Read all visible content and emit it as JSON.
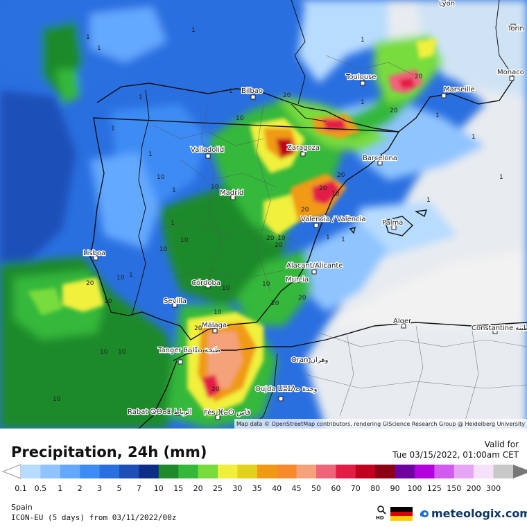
{
  "legend": {
    "title": "Precipitation, 24h (mm)",
    "valid_label": "Valid for",
    "valid_time": "Tue 03/15/2022, 01:00am CET",
    "region": "Spain",
    "model": "ICON-EU (5 days) from 03/11/2022/00z",
    "brand": "meteologix.com",
    "hd": "HD",
    "scale": [
      {
        "label": "0.1",
        "color": "#b8dcff"
      },
      {
        "label": "0.5",
        "color": "#8fc4ff"
      },
      {
        "label": "1",
        "color": "#64a9ff"
      },
      {
        "label": "2",
        "color": "#3d8cf5"
      },
      {
        "label": "3",
        "color": "#2a6fe0"
      },
      {
        "label": "5",
        "color": "#1c4fb8"
      },
      {
        "label": "7",
        "color": "#0d2e86"
      },
      {
        "label": "10",
        "color": "#1e8a2a"
      },
      {
        "label": "15",
        "color": "#34b83a"
      },
      {
        "label": "20",
        "color": "#78dc3c"
      },
      {
        "label": "25",
        "color": "#f0f03c"
      },
      {
        "label": "30",
        "color": "#e2d21e"
      },
      {
        "label": "35",
        "color": "#f09a14"
      },
      {
        "label": "40",
        "color": "#f78a2c"
      },
      {
        "label": "45",
        "color": "#f5a27a"
      },
      {
        "label": "50",
        "color": "#f0647a"
      },
      {
        "label": "60",
        "color": "#e31c46"
      },
      {
        "label": "70",
        "color": "#c0001e"
      },
      {
        "label": "80",
        "color": "#8c0014"
      },
      {
        "label": "90",
        "color": "#6e00a0"
      },
      {
        "label": "100",
        "color": "#b400dc"
      },
      {
        "label": "125",
        "color": "#d25af0"
      },
      {
        "label": "150",
        "color": "#e6a6f5"
      },
      {
        "label": "200",
        "color": "#f5e1fa"
      },
      {
        "label": "300",
        "color": "#c8c8c8"
      }
    ]
  },
  "map": {
    "attribution": "Map data © OpenStreetMap contributors, rendering GIScience Research Group @ Heidelberg University",
    "cities": [
      {
        "name": "Lyon"
      },
      {
        "name": "Torin"
      },
      {
        "name": "Toulouse"
      },
      {
        "name": "Monaco"
      },
      {
        "name": "Marseille"
      },
      {
        "name": "Bilbao"
      },
      {
        "name": "Valladolid"
      },
      {
        "name": "Zaragoza"
      },
      {
        "name": "Barcelona"
      },
      {
        "name": "Madrid"
      },
      {
        "name": "Palma"
      },
      {
        "name": "Valencia / València"
      },
      {
        "name": "Lisboa"
      },
      {
        "name": "Alacant/Alicante"
      },
      {
        "name": "Córdoba"
      },
      {
        "name": "Murcia"
      },
      {
        "name": "Sevilla"
      },
      {
        "name": "Alger"
      },
      {
        "name": "Constantine ﻗﺴﻨﻄﻴﻨﺔ"
      },
      {
        "name": "Málaga"
      },
      {
        "name": "Tanger ⵟⴰⵏⵊⴰ ﻃﻨﺠﺔ"
      },
      {
        "name": "Oran ﻭﻫﺮﺍﻥ"
      },
      {
        "name": "Oujda ⵡⵓⵊⴷⴰ ﻭﺟﺪﺓ"
      },
      {
        "name": "Rabat ⵕⴱⴰⵟ ﺍﻟﺮﺑﺎﻁ"
      },
      {
        "name": "Fès ⴼⴰⵙ ﻓﺎﺱ"
      }
    ],
    "contour_labels": [
      "1",
      "1",
      "1",
      "1",
      "1",
      "1",
      "1",
      "1",
      "1",
      "1",
      "1",
      "1",
      "1",
      "1",
      "1",
      "1",
      "1",
      "1",
      "1",
      "10",
      "10",
      "10",
      "10",
      "10",
      "10",
      "10",
      "10",
      "10",
      "10",
      "10",
      "10",
      "10",
      "10",
      "10",
      "20",
      "20",
      "20",
      "20",
      "20",
      "20",
      "20",
      "20",
      "20",
      "20",
      "20",
      "20",
      "20"
    ]
  }
}
